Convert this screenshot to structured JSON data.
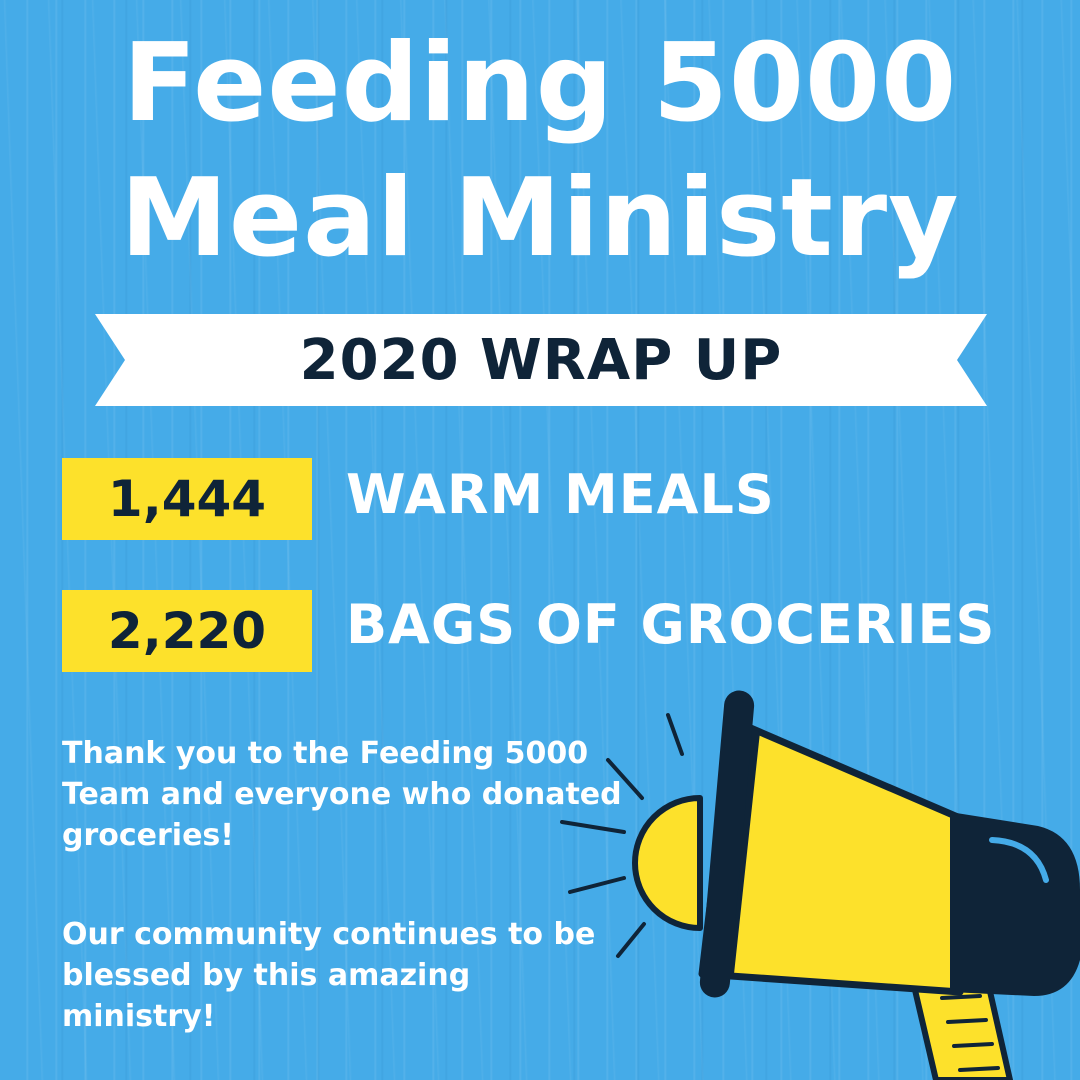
{
  "title": {
    "line1": "Feeding 5000",
    "line2": "Meal Ministry"
  },
  "banner": {
    "text": "2020 WRAP UP"
  },
  "stats": [
    {
      "value": "1,444",
      "label": "WARM MEALS"
    },
    {
      "value": "2,220",
      "label": "BAGS OF GROCERIES"
    }
  ],
  "message": {
    "thanks": "Thank you to the Feeding 5000 Team and everyone who donated groceries!",
    "blessed": "Our community continues to be blessed by this amazing ministry!"
  },
  "colors": {
    "background": "#45abe8",
    "accent_yellow": "#fde12b",
    "navy": "#0f2438",
    "white": "#ffffff"
  },
  "icons": [
    "megaphone-icon"
  ]
}
